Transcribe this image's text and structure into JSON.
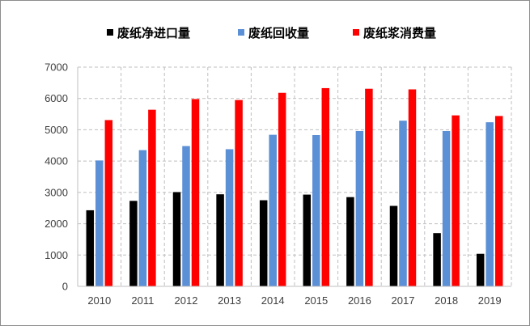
{
  "chart_data": {
    "type": "bar",
    "categories": [
      "2010",
      "2011",
      "2012",
      "2013",
      "2014",
      "2015",
      "2016",
      "2017",
      "2018",
      "2019"
    ],
    "series": [
      {
        "name": "废纸净进口量",
        "color": "#000000",
        "values": [
          2430,
          2730,
          3010,
          2940,
          2750,
          2930,
          2850,
          2570,
          1700,
          1040
        ]
      },
      {
        "name": "废纸回收量",
        "color": "#5b8fd6",
        "values": [
          4020,
          4350,
          4480,
          4380,
          4840,
          4830,
          4960,
          5290,
          4960,
          5240
        ]
      },
      {
        "name": "废纸浆消费量",
        "color": "#ff0000",
        "values": [
          5310,
          5640,
          5980,
          5950,
          6180,
          6330,
          6310,
          6290,
          5460,
          5440
        ]
      }
    ],
    "yticks": [
      "0",
      "1000",
      "2000",
      "3000",
      "4000",
      "5000",
      "6000",
      "7000"
    ],
    "ylim": [
      0,
      7000
    ],
    "grid": "dashed gridlines on both axes",
    "legend": "top",
    "title": "",
    "xlabel": "",
    "ylabel": ""
  }
}
